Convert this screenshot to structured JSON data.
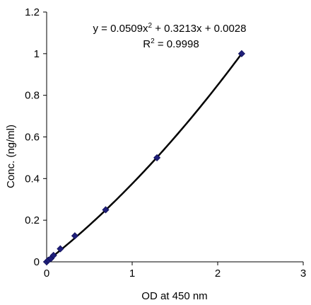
{
  "chart_data": {
    "type": "scatter",
    "xlabel": "OD at 450 nm",
    "ylabel": "Conc. (ng/ml)",
    "xlim": [
      0,
      3
    ],
    "ylim": [
      0,
      1.2
    ],
    "xticks": [
      0,
      1,
      2,
      3
    ],
    "yticks": [
      0,
      0.2,
      0.4,
      0.6,
      0.8,
      1,
      1.2
    ],
    "xtick_labels": [
      "0",
      "1",
      "2",
      "3"
    ],
    "ytick_labels": [
      "0",
      "0.2",
      "0.4",
      "0.6",
      "0.8",
      "1",
      "1.2"
    ],
    "grid": false,
    "series": [
      {
        "marker": "diamond",
        "color": "#1f1f7a",
        "x": [
          0.0,
          0.02,
          0.05,
          0.08,
          0.16,
          0.33,
          0.69,
          1.29,
          2.28
        ],
        "y": [
          0.0,
          0.008,
          0.016,
          0.031,
          0.0625,
          0.125,
          0.25,
          0.5,
          1.0
        ]
      }
    ],
    "trendline": {
      "type": "polynomial",
      "coefficients": [
        0.0509,
        0.3213,
        0.0028
      ],
      "x_range": [
        0.0,
        2.28
      ],
      "color": "#000000"
    },
    "annotations": {
      "equation_prefix": "y = 0.0509x",
      "equation_exp": "2",
      "equation_suffix": " + 0.3213x + 0.0028",
      "r2_prefix": "R",
      "r2_exp": "2",
      "r2_suffix": " = 0.9998"
    }
  }
}
